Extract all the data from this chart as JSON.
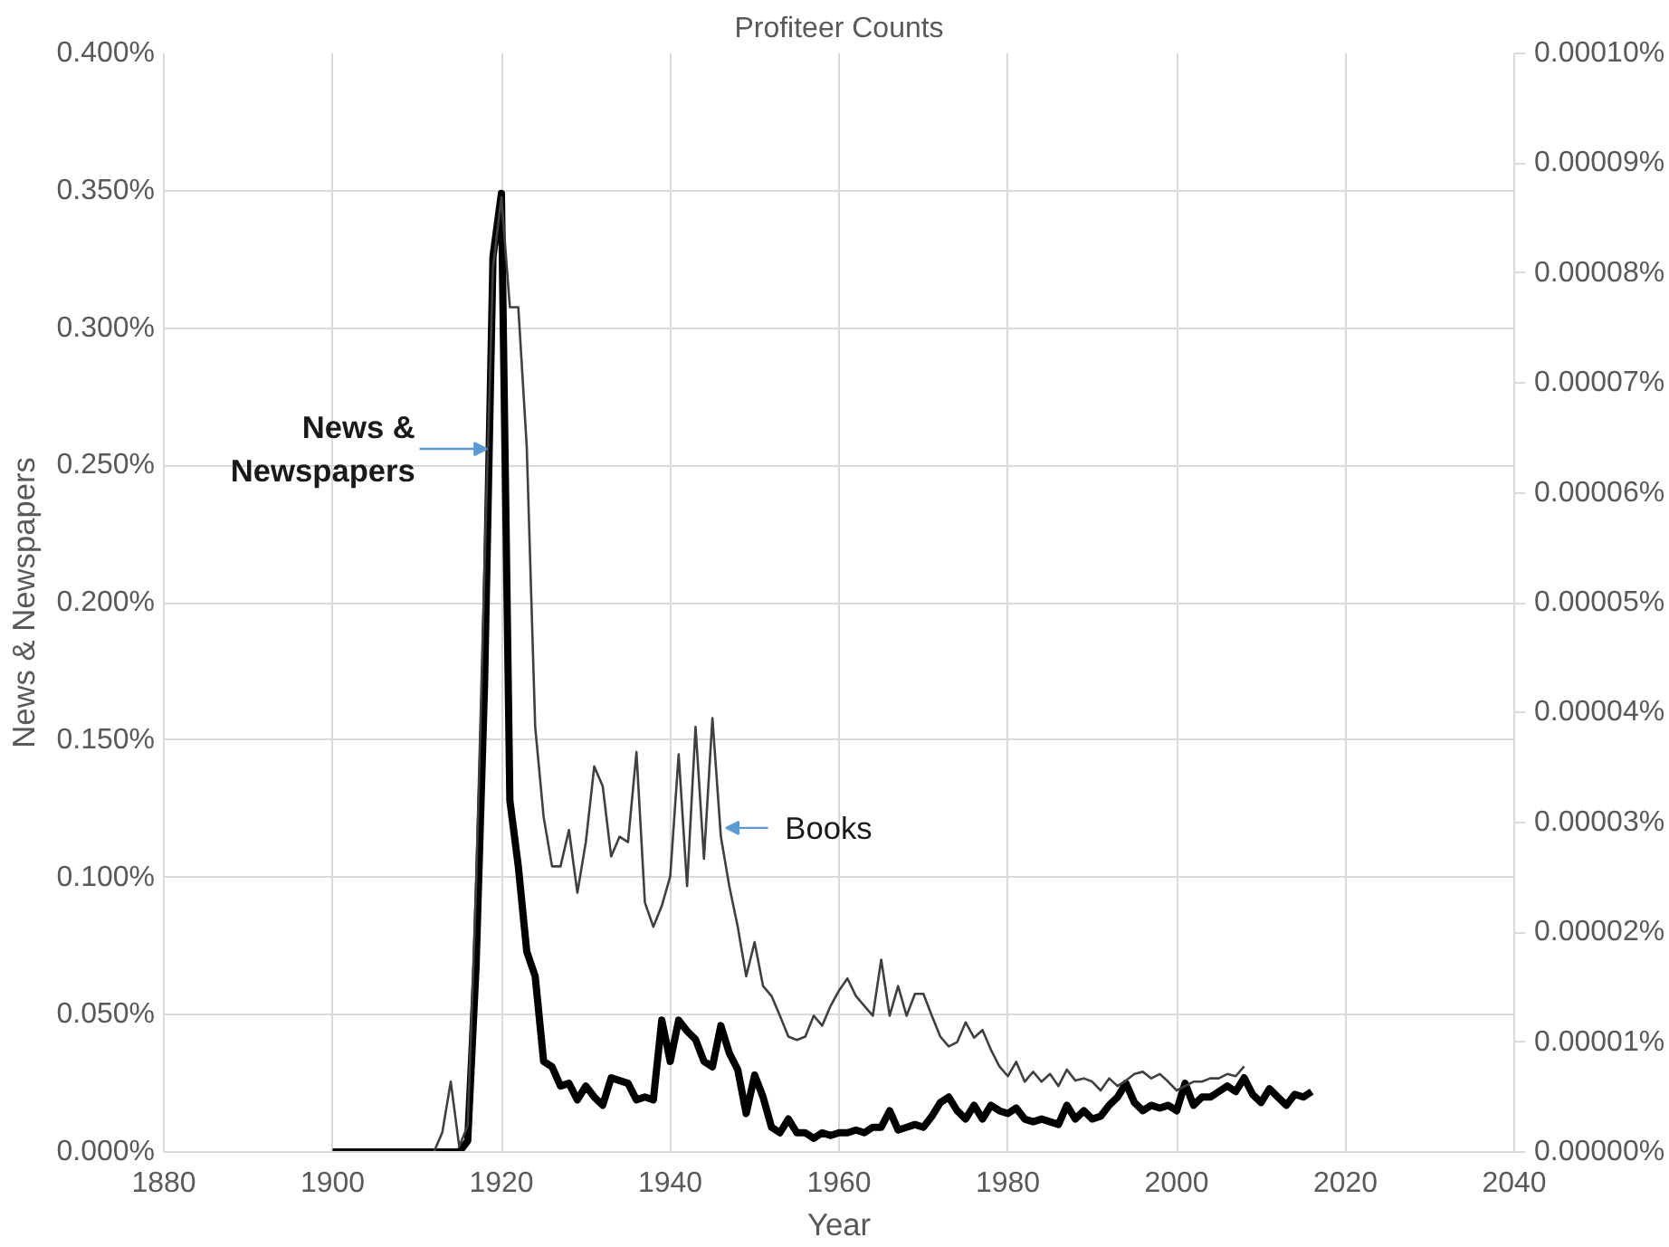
{
  "chart_data": {
    "type": "line",
    "title": "Profiteer Counts",
    "xlabel": "Year",
    "ylabel": "News & Newspapers",
    "xlim": [
      1880,
      2040
    ],
    "xticks": [
      1880,
      1900,
      1920,
      1940,
      1960,
      1980,
      2000,
      2020,
      2040
    ],
    "ylim": [
      0,
      0.4
    ],
    "yticks": [
      {
        "value": 0,
        "label": "0.000%"
      },
      {
        "value": 0.05,
        "label": "0.050%"
      },
      {
        "value": 0.1,
        "label": "0.100%"
      },
      {
        "value": 0.15,
        "label": "0.150%"
      },
      {
        "value": 0.2,
        "label": "0.200%"
      },
      {
        "value": 0.25,
        "label": "0.250%"
      },
      {
        "value": 0.3,
        "label": "0.300%"
      },
      {
        "value": 0.35,
        "label": "0.350%"
      },
      {
        "value": 0.4,
        "label": "0.400%"
      }
    ],
    "y2lim": [
      0,
      0.0001
    ],
    "y2ticks": [
      {
        "value": 0,
        "label": "0.00000%"
      },
      {
        "value": 1e-05,
        "label": "0.00001%"
      },
      {
        "value": 2e-05,
        "label": "0.00002%"
      },
      {
        "value": 3e-05,
        "label": "0.00003%"
      },
      {
        "value": 4e-05,
        "label": "0.00004%"
      },
      {
        "value": 5e-05,
        "label": "0.00005%"
      },
      {
        "value": 6e-05,
        "label": "0.00006%"
      },
      {
        "value": 7e-05,
        "label": "0.00007%"
      },
      {
        "value": 8e-05,
        "label": "0.00008%"
      },
      {
        "value": 9e-05,
        "label": "0.00009%"
      },
      {
        "value": 0.0001,
        "label": "0.00010%"
      }
    ],
    "grid": true,
    "marker": "none",
    "line_style": "solid",
    "series": [
      {
        "color": "#000000",
        "axis": "y",
        "x": [
          1900,
          1901,
          1902,
          1903,
          1904,
          1905,
          1906,
          1907,
          1908,
          1909,
          1910,
          1911,
          1912,
          1913,
          1914,
          1915,
          1916,
          1917,
          1918,
          1919,
          1920,
          1921,
          1922,
          1923,
          1924,
          1925,
          1926,
          1927,
          1928,
          1929,
          1930,
          1931,
          1932,
          1933,
          1934,
          1935,
          1936,
          1937,
          1938,
          1939,
          1940,
          1941,
          1942,
          1943,
          1944,
          1945,
          1946,
          1947,
          1948,
          1949,
          1950,
          1951,
          1952,
          1953,
          1954,
          1955,
          1956,
          1957,
          1958,
          1959,
          1960,
          1961,
          1962,
          1963,
          1964,
          1965,
          1966,
          1967,
          1968,
          1969,
          1970,
          1971,
          1972,
          1973,
          1974,
          1975,
          1976,
          1977,
          1978,
          1979,
          1980,
          1981,
          1982,
          1983,
          1984,
          1985,
          1986,
          1987,
          1988,
          1989,
          1990,
          1991,
          1992,
          1993,
          1994,
          1995,
          1996,
          1997,
          1998,
          1999,
          2000,
          2001,
          2002,
          2003,
          2004,
          2005,
          2006,
          2007,
          2008,
          2009,
          2010,
          2011,
          2012,
          2013,
          2014,
          2015,
          2016
        ],
        "values": [
          0,
          0,
          0,
          0,
          0,
          0,
          0,
          0,
          0,
          0,
          0,
          0,
          0,
          0,
          0,
          0,
          0.004,
          0.068,
          0.17,
          0.326,
          0.349,
          0.128,
          0.104,
          0.073,
          0.064,
          0.033,
          0.031,
          0.024,
          0.025,
          0.019,
          0.024,
          0.02,
          0.017,
          0.027,
          0.026,
          0.025,
          0.019,
          0.02,
          0.019,
          0.048,
          0.033,
          0.048,
          0.044,
          0.041,
          0.033,
          0.031,
          0.046,
          0.036,
          0.03,
          0.014,
          0.028,
          0.02,
          0.009,
          0.007,
          0.012,
          0.007,
          0.007,
          0.005,
          0.007,
          0.006,
          0.007,
          0.007,
          0.008,
          0.007,
          0.009,
          0.009,
          0.015,
          0.008,
          0.009,
          0.01,
          0.009,
          0.013,
          0.018,
          0.02,
          0.015,
          0.012,
          0.017,
          0.012,
          0.017,
          0.015,
          0.014,
          0.016,
          0.012,
          0.011,
          0.012,
          0.011,
          0.01,
          0.017,
          0.012,
          0.015,
          0.012,
          0.013,
          0.017,
          0.02,
          0.025,
          0.018,
          0.015,
          0.017,
          0.016,
          0.017,
          0.015,
          0.025,
          0.017,
          0.02,
          0.02,
          0.022,
          0.024,
          0.022,
          0.027,
          0.021,
          0.018,
          0.023,
          0.02,
          0.017,
          0.021,
          0.02,
          0.022
        ]
      },
      {
        "color": "#404040",
        "axis": "y2",
        "x": [
          1900,
          1901,
          1902,
          1903,
          1904,
          1905,
          1906,
          1907,
          1908,
          1909,
          1910,
          1911,
          1912,
          1913,
          1914,
          1915,
          1916,
          1917,
          1918,
          1919,
          1920,
          1921,
          1922,
          1923,
          1924,
          1925,
          1926,
          1927,
          1928,
          1929,
          1930,
          1931,
          1932,
          1933,
          1934,
          1935,
          1936,
          1937,
          1938,
          1939,
          1940,
          1941,
          1942,
          1943,
          1944,
          1945,
          1946,
          1947,
          1948,
          1949,
          1950,
          1951,
          1952,
          1953,
          1954,
          1955,
          1956,
          1957,
          1958,
          1959,
          1960,
          1961,
          1962,
          1963,
          1964,
          1965,
          1966,
          1967,
          1968,
          1969,
          1970,
          1971,
          1972,
          1973,
          1974,
          1975,
          1976,
          1977,
          1978,
          1979,
          1980,
          1981,
          1982,
          1983,
          1984,
          1985,
          1986,
          1987,
          1988,
          1989,
          1990,
          1991,
          1992,
          1993,
          1994,
          1995,
          1996,
          1997,
          1998,
          1999,
          2000,
          2001,
          2002,
          2003,
          2004,
          2005,
          2006,
          2007,
          2008
        ],
        "values": [
          0,
          0,
          0,
          0,
          0,
          0,
          0,
          0,
          0,
          0,
          0,
          0,
          0,
          1.8e-06,
          6.4e-06,
          5e-07,
          2.4e-06,
          2.42e-05,
          5.33e-05,
          8.05e-05,
          8.69e-05,
          7.69e-05,
          7.69e-05,
          6.42e-05,
          3.87e-05,
          3.05e-05,
          2.6e-05,
          2.6e-05,
          2.93e-05,
          2.36e-05,
          2.82e-05,
          3.51e-05,
          3.33e-05,
          2.69e-05,
          2.87e-05,
          2.82e-05,
          3.64e-05,
          2.27e-05,
          2.05e-05,
          2.24e-05,
          2.51e-05,
          3.62e-05,
          2.42e-05,
          3.87e-05,
          2.67e-05,
          3.95e-05,
          2.87e-05,
          2.42e-05,
          2.05e-05,
          1.6e-05,
          1.91e-05,
          1.51e-05,
          1.42e-05,
          1.24e-05,
          1.05e-05,
          1.02e-05,
          1.05e-05,
          1.24e-05,
          1.15e-05,
          1.33e-05,
          1.47e-05,
          1.58e-05,
          1.42e-05,
          1.33e-05,
          1.24e-05,
          1.75e-05,
          1.24e-05,
          1.51e-05,
          1.24e-05,
          1.44e-05,
          1.44e-05,
          1.24e-05,
          1.05e-05,
          9.6e-06,
          1e-05,
          1.18e-05,
          1.04e-05,
          1.11e-05,
          9.3e-06,
          7.8e-06,
          6.9e-06,
          8.2e-06,
          6.4e-06,
          7.3e-06,
          6.4e-06,
          7.1e-06,
          6e-06,
          7.5e-06,
          6.5e-06,
          6.7e-06,
          6.4e-06,
          5.6e-06,
          6.7e-06,
          6e-06,
          6.5e-06,
          7.1e-06,
          7.3e-06,
          6.7e-06,
          7.1e-06,
          6.4e-06,
          5.6e-06,
          6e-06,
          6.4e-06,
          6.4e-06,
          6.7e-06,
          6.7e-06,
          7.1e-06,
          6.9e-06,
          7.8e-06
        ]
      }
    ],
    "annotations": [
      {
        "text": "News & Newspapers",
        "x": 1918.3,
        "y": 0.256
      },
      {
        "text": "Books",
        "x": 1946.6,
        "y": 0.118
      }
    ]
  }
}
